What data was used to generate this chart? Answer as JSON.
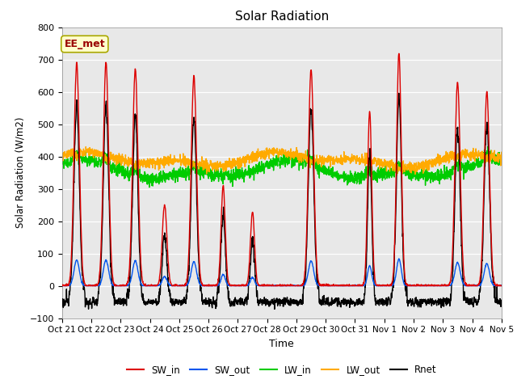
{
  "title": "Solar Radiation",
  "ylabel": "Solar Radiation (W/m2)",
  "xlabel": "Time",
  "ylim": [
    -100,
    800
  ],
  "yticks": [
    -100,
    0,
    100,
    200,
    300,
    400,
    500,
    600,
    700,
    800
  ],
  "colors": {
    "SW_in": "#dd0000",
    "SW_out": "#0055ee",
    "LW_in": "#00cc00",
    "LW_out": "#ffaa00",
    "Rnet": "#000000"
  },
  "background_color": "#e8e8e8",
  "annotation_text": "EE_met",
  "annotation_box_color": "#ffffcc",
  "annotation_box_edge": "#aaa800",
  "x_tick_labels": [
    "Oct 21",
    "Oct 22",
    "Oct 23",
    "Oct 24",
    "Oct 25",
    "Oct 26",
    "Oct 27",
    "Oct 28",
    "Oct 29",
    "Oct 30",
    "Oct 31",
    "Nov 1",
    "Nov 2",
    "Nov 3",
    "Nov 4",
    "Nov 5"
  ],
  "n_days": 15,
  "points_per_day": 144,
  "sw_peaks": [
    690,
    690,
    670,
    250,
    650,
    310,
    230,
    0,
    670,
    0,
    540,
    720,
    0,
    630,
    600
  ],
  "sw_widths": [
    0.09,
    0.09,
    0.09,
    0.08,
    0.09,
    0.07,
    0.07,
    0.0,
    0.09,
    0.0,
    0.07,
    0.08,
    0.0,
    0.09,
    0.09
  ],
  "lw_in_base": 355,
  "lw_out_base": 390,
  "rnet_night": -50
}
